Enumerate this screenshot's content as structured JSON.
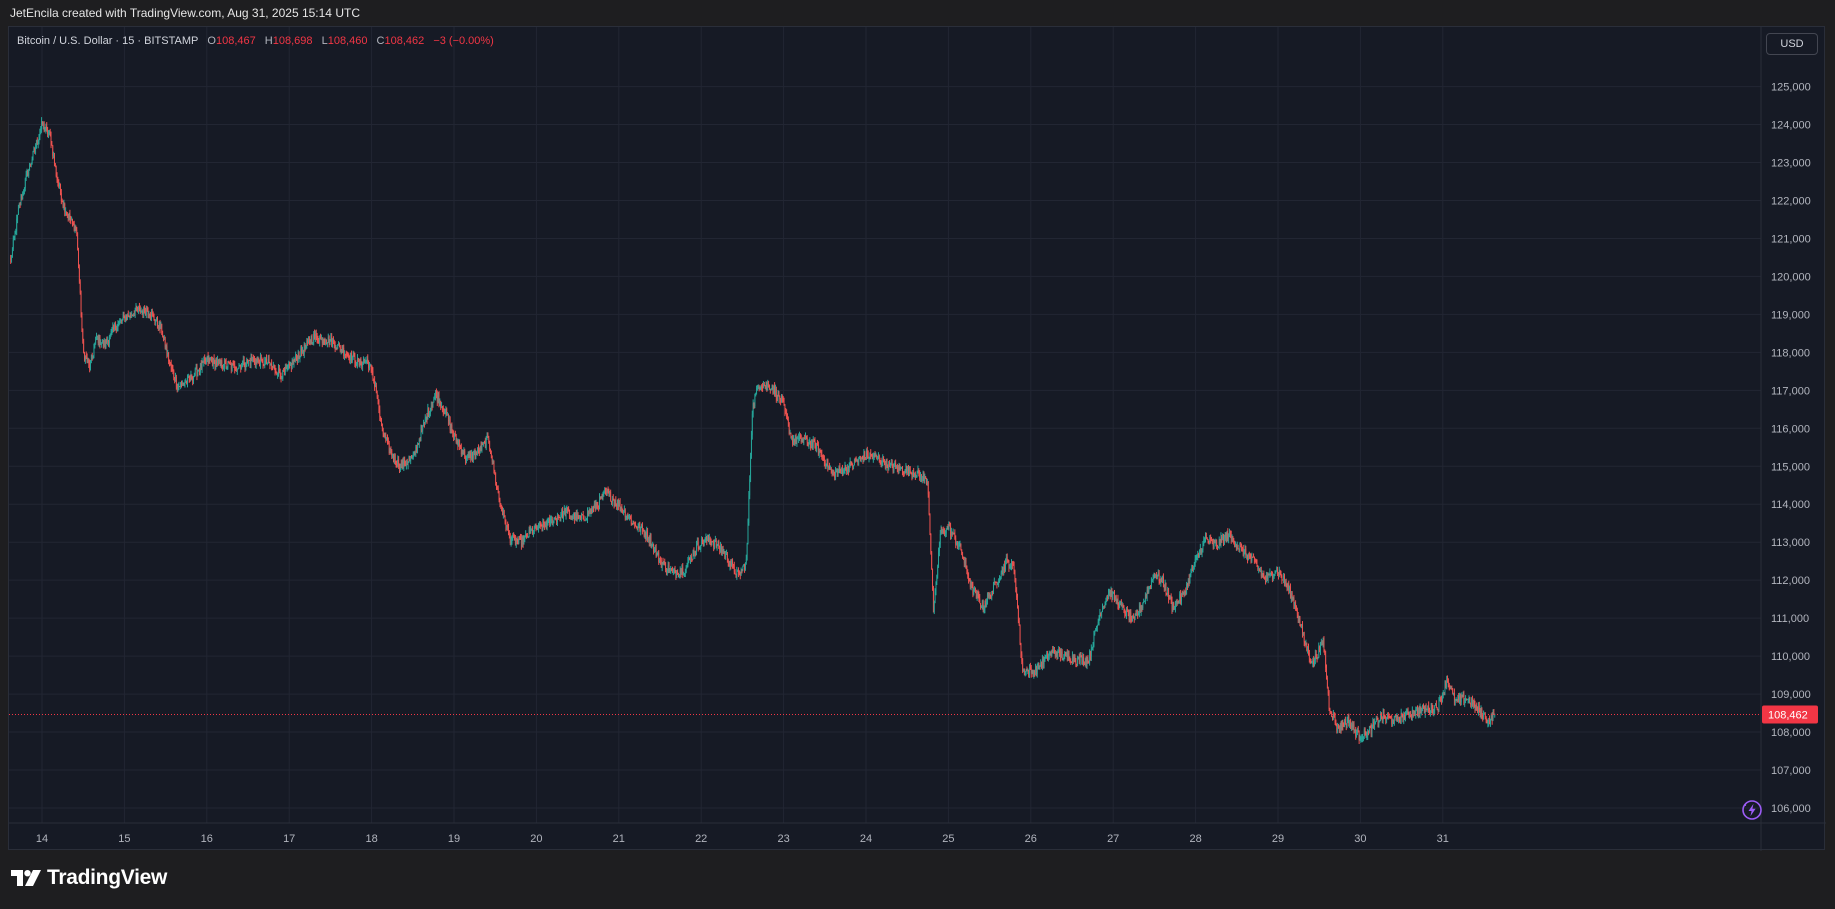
{
  "caption": "JetEncila created with TradingView.com, Aug 31, 2025 15:14 UTC",
  "legend": {
    "symbol": "Bitcoin / U.S. Dollar · 15 · BITSTAMP",
    "o_label": "O",
    "o_value": "108,467",
    "h_label": "H",
    "h_value": "108,698",
    "l_label": "L",
    "l_value": "108,460",
    "c_label": "C",
    "c_value": "108,462",
    "change": "−3 (−0.00%)"
  },
  "currency": "USD",
  "footer": {
    "brand": "TradingView"
  },
  "icons": {
    "logo": "tradingview-logo-icon",
    "bolt": "lightning-icon"
  },
  "colors": {
    "up": "#26a69a",
    "down": "#ef5350",
    "background": "#161a25",
    "grid": "#222633",
    "price_tag": "#f23645",
    "bolt": "#9c5cf5"
  },
  "chart_data": {
    "type": "candlestick",
    "interval": "15",
    "x_ticks": [
      "14",
      "15",
      "16",
      "17",
      "18",
      "19",
      "20",
      "21",
      "22",
      "23",
      "24",
      "25",
      "26",
      "27",
      "28",
      "29",
      "30",
      "31"
    ],
    "y_ticks": [
      "106,000",
      "107,000",
      "108,000",
      "109,000",
      "110,000",
      "111,000",
      "112,000",
      "113,000",
      "114,000",
      "115,000",
      "116,000",
      "117,000",
      "118,000",
      "119,000",
      "120,000",
      "121,000",
      "122,000",
      "123,000",
      "124,000",
      "125,000"
    ],
    "ylim": [
      105600,
      125500
    ],
    "xlim": [
      13.6,
      31.75
    ],
    "last_price": 108462,
    "last_price_label": "108,462",
    "path": [
      [
        13.62,
        120400
      ],
      [
        13.72,
        121800
      ],
      [
        13.82,
        122700
      ],
      [
        13.92,
        123400
      ],
      [
        14.0,
        124000
      ],
      [
        14.1,
        123700
      ],
      [
        14.18,
        122600
      ],
      [
        14.26,
        121900
      ],
      [
        14.34,
        121500
      ],
      [
        14.42,
        121200
      ],
      [
        14.5,
        118000
      ],
      [
        14.58,
        117600
      ],
      [
        14.66,
        118400
      ],
      [
        14.76,
        118200
      ],
      [
        14.9,
        118700
      ],
      [
        15.0,
        118900
      ],
      [
        15.15,
        119100
      ],
      [
        15.3,
        119100
      ],
      [
        15.45,
        118600
      ],
      [
        15.55,
        117700
      ],
      [
        15.65,
        117100
      ],
      [
        15.8,
        117300
      ],
      [
        16.0,
        117800
      ],
      [
        16.15,
        117700
      ],
      [
        16.35,
        117600
      ],
      [
        16.55,
        117800
      ],
      [
        16.75,
        117700
      ],
      [
        16.92,
        117400
      ],
      [
        17.1,
        117900
      ],
      [
        17.3,
        118400
      ],
      [
        17.5,
        118300
      ],
      [
        17.68,
        118000
      ],
      [
        17.85,
        117700
      ],
      [
        17.95,
        117800
      ],
      [
        18.05,
        117100
      ],
      [
        18.12,
        116000
      ],
      [
        18.22,
        115400
      ],
      [
        18.35,
        115000
      ],
      [
        18.5,
        115200
      ],
      [
        18.68,
        116400
      ],
      [
        18.78,
        116900
      ],
      [
        18.9,
        116400
      ],
      [
        19.0,
        115800
      ],
      [
        19.15,
        115200
      ],
      [
        19.3,
        115400
      ],
      [
        19.42,
        115700
      ],
      [
        19.55,
        114100
      ],
      [
        19.68,
        113100
      ],
      [
        19.82,
        113000
      ],
      [
        19.95,
        113300
      ],
      [
        20.15,
        113500
      ],
      [
        20.35,
        113800
      ],
      [
        20.55,
        113600
      ],
      [
        20.7,
        113900
      ],
      [
        20.85,
        114300
      ],
      [
        21.0,
        114000
      ],
      [
        21.18,
        113500
      ],
      [
        21.35,
        113200
      ],
      [
        21.5,
        112500
      ],
      [
        21.65,
        112200
      ],
      [
        21.8,
        112300
      ],
      [
        21.95,
        112900
      ],
      [
        22.1,
        113100
      ],
      [
        22.25,
        112800
      ],
      [
        22.45,
        112100
      ],
      [
        22.55,
        112500
      ],
      [
        22.62,
        116500
      ],
      [
        22.7,
        117200
      ],
      [
        22.85,
        117100
      ],
      [
        22.98,
        116700
      ],
      [
        23.1,
        115700
      ],
      [
        23.25,
        115700
      ],
      [
        23.4,
        115500
      ],
      [
        23.6,
        114800
      ],
      [
        23.8,
        115000
      ],
      [
        24.0,
        115300
      ],
      [
        24.15,
        115200
      ],
      [
        24.3,
        115000
      ],
      [
        24.5,
        114900
      ],
      [
        24.62,
        114800
      ],
      [
        24.75,
        114600
      ],
      [
        24.82,
        111100
      ],
      [
        24.9,
        113200
      ],
      [
        25.0,
        113400
      ],
      [
        25.15,
        112800
      ],
      [
        25.28,
        111800
      ],
      [
        25.42,
        111300
      ],
      [
        25.55,
        111800
      ],
      [
        25.7,
        112500
      ],
      [
        25.8,
        112300
      ],
      [
        25.9,
        109600
      ],
      [
        26.05,
        109600
      ],
      [
        26.25,
        110100
      ],
      [
        26.42,
        110000
      ],
      [
        26.58,
        109900
      ],
      [
        26.7,
        109900
      ],
      [
        26.85,
        111200
      ],
      [
        26.95,
        111700
      ],
      [
        27.1,
        111300
      ],
      [
        27.25,
        110900
      ],
      [
        27.38,
        111500
      ],
      [
        27.5,
        112200
      ],
      [
        27.62,
        111900
      ],
      [
        27.72,
        111300
      ],
      [
        27.85,
        111600
      ],
      [
        28.0,
        112500
      ],
      [
        28.12,
        113100
      ],
      [
        28.25,
        112900
      ],
      [
        28.4,
        113200
      ],
      [
        28.55,
        112800
      ],
      [
        28.7,
        112500
      ],
      [
        28.85,
        112000
      ],
      [
        28.98,
        112300
      ],
      [
        29.1,
        111900
      ],
      [
        29.22,
        111300
      ],
      [
        29.32,
        110400
      ],
      [
        29.42,
        109800
      ],
      [
        29.55,
        110400
      ],
      [
        29.62,
        108700
      ],
      [
        29.72,
        108100
      ],
      [
        29.85,
        108300
      ],
      [
        29.98,
        107900
      ],
      [
        30.1,
        108000
      ],
      [
        30.25,
        108400
      ],
      [
        30.42,
        108300
      ],
      [
        30.6,
        108500
      ],
      [
        30.8,
        108600
      ],
      [
        30.95,
        108700
      ],
      [
        31.05,
        109400
      ],
      [
        31.15,
        108800
      ],
      [
        31.3,
        108900
      ],
      [
        31.42,
        108600
      ],
      [
        31.55,
        108300
      ],
      [
        31.64,
        108460
      ]
    ]
  }
}
